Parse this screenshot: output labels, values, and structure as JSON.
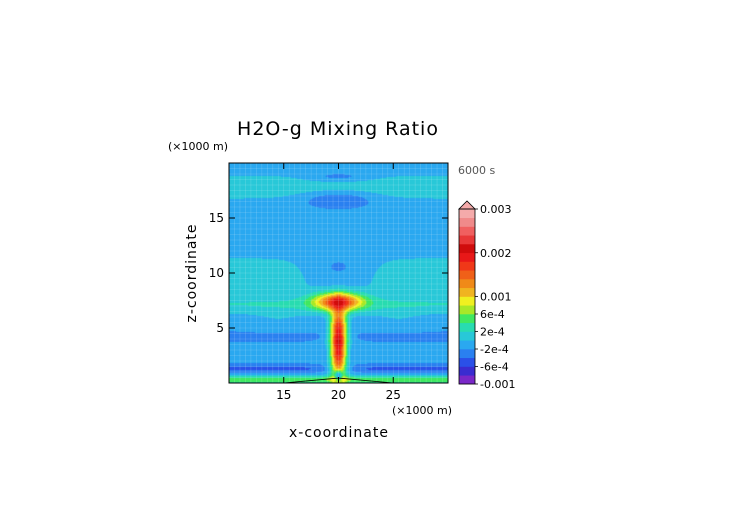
{
  "chart_data": {
    "type": "heatmap",
    "title": "H2O-g Mixing Ratio",
    "time_label": "6000 s",
    "xlabel": "x-coordinate",
    "ylabel": "z-coordinate",
    "x_unit": "(×1000 m)",
    "y_unit": "(×1000 m)",
    "xlim": [
      10,
      30
    ],
    "ylim": [
      0,
      20
    ],
    "x_ticks": [
      15,
      20,
      25
    ],
    "y_ticks": [
      5,
      10,
      15
    ],
    "grid": true,
    "legend": "right colorbar",
    "colorbar": {
      "levels": [
        -0.001,
        -0.0008,
        -0.0006,
        -0.0004,
        -0.0002,
        0,
        0.0002,
        0.0004,
        0.0006,
        0.0008,
        0.001,
        0.0012,
        0.0014,
        0.0016,
        0.0018,
        0.002,
        0.0022,
        0.0024,
        0.0026,
        0.0028,
        0.003
      ],
      "colors": [
        "#7a28c8",
        "#3a2cd0",
        "#2a50e8",
        "#2a80f0",
        "#2aa8f0",
        "#28c8d8",
        "#28dcb0",
        "#40e860",
        "#a8e828",
        "#f0f020",
        "#f0b420",
        "#f08a18",
        "#f06018",
        "#f03818",
        "#e81818",
        "#d00c0c",
        "#e83838",
        "#f06060",
        "#f08a8a",
        "#f4aaaa"
      ],
      "tick_labels": [
        {
          "value": 0.003,
          "label": "0.003"
        },
        {
          "value": 0.002,
          "label": "0.002"
        },
        {
          "value": 0.001,
          "label": "0.001"
        },
        {
          "value": 0.0006,
          "label": "6e-4"
        },
        {
          "value": 0.0002,
          "label": "2e-4"
        },
        {
          "value": -0.0002,
          "label": "-2e-4"
        },
        {
          "value": -0.0006,
          "label": "-6e-4"
        },
        {
          "value": -0.001,
          "label": "-0.001"
        }
      ],
      "extend": "max"
    },
    "field_notes": "Approximate anomaly field: central plume near x=20 reaching ~0.0025 around z=3-6 km, spreading at z~7 km; mostly near -2e-4 to 2e-4 elsewhere, positive bands aloft and near the surface."
  }
}
